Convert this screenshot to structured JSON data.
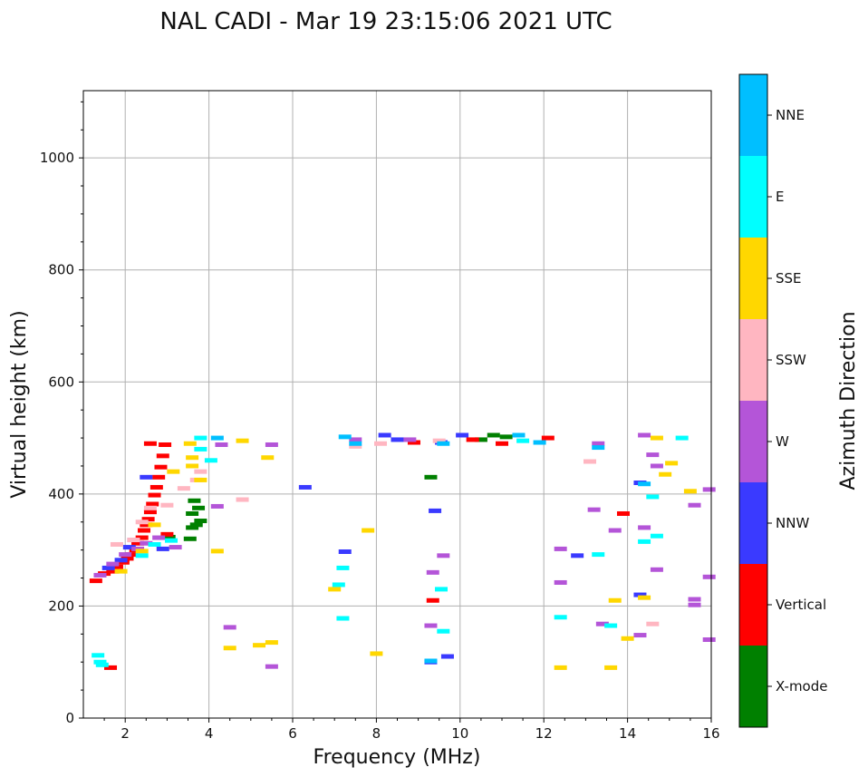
{
  "chart_data": {
    "type": "scatter",
    "title": "NAL CADI - Mar 19 23:15:06 2021 UTC",
    "xlabel": "Frequency (MHz)",
    "ylabel": "Virtual height (km)",
    "xlim": [
      1,
      16
    ],
    "ylim": [
      0,
      1120
    ],
    "xticks": [
      2,
      4,
      6,
      8,
      10,
      12,
      14,
      16
    ],
    "yticks": [
      0,
      200,
      400,
      600,
      800,
      1000
    ],
    "grid": true,
    "colorbar": {
      "title": "Azimuth Direction",
      "categories": [
        {
          "name": "X-mode",
          "color": "#008000"
        },
        {
          "name": "Vertical",
          "color": "#ff0000"
        },
        {
          "name": "NNW",
          "color": "#3a3aff"
        },
        {
          "name": "W",
          "color": "#b455d8"
        },
        {
          "name": "SSW",
          "color": "#ffb6c1"
        },
        {
          "name": "SSE",
          "color": "#ffd700"
        },
        {
          "name": "E",
          "color": "#00ffff"
        },
        {
          "name": "NNE",
          "color": "#00bfff"
        }
      ]
    },
    "series": [
      {
        "category": "X-mode",
        "points": [
          [
            3.05,
            323
          ],
          [
            3.55,
            320
          ],
          [
            3.6,
            340
          ],
          [
            3.7,
            345
          ],
          [
            3.8,
            352
          ],
          [
            3.6,
            365
          ],
          [
            3.75,
            375
          ],
          [
            3.65,
            388
          ],
          [
            10.5,
            497
          ],
          [
            10.8,
            505
          ],
          [
            11.1,
            502
          ],
          [
            9.3,
            430
          ]
        ]
      },
      {
        "category": "Vertical",
        "points": [
          [
            1.3,
            245
          ],
          [
            1.5,
            258
          ],
          [
            1.7,
            262
          ],
          [
            1.8,
            270
          ],
          [
            1.95,
            278
          ],
          [
            2.05,
            285
          ],
          [
            2.15,
            292
          ],
          [
            2.25,
            300
          ],
          [
            2.3,
            312
          ],
          [
            2.4,
            322
          ],
          [
            2.45,
            335
          ],
          [
            2.5,
            345
          ],
          [
            2.55,
            355
          ],
          [
            2.6,
            368
          ],
          [
            2.65,
            382
          ],
          [
            2.7,
            398
          ],
          [
            2.75,
            412
          ],
          [
            2.8,
            430
          ],
          [
            2.85,
            448
          ],
          [
            2.9,
            468
          ],
          [
            2.95,
            488
          ],
          [
            2.6,
            490
          ],
          [
            3.0,
            328
          ],
          [
            1.65,
            90
          ],
          [
            8.9,
            492
          ],
          [
            10.3,
            497
          ],
          [
            11.0,
            490
          ],
          [
            12.1,
            500
          ],
          [
            13.9,
            365
          ],
          [
            9.35,
            210
          ]
        ]
      },
      {
        "category": "NNW",
        "points": [
          [
            1.6,
            268
          ],
          [
            1.9,
            282
          ],
          [
            2.1,
            305
          ],
          [
            2.2,
            318
          ],
          [
            2.9,
            302
          ],
          [
            2.5,
            430
          ],
          [
            6.3,
            412
          ],
          [
            7.25,
            297
          ],
          [
            8.2,
            505
          ],
          [
            8.5,
            497
          ],
          [
            9.55,
            492
          ],
          [
            10.05,
            505
          ],
          [
            12.8,
            290
          ],
          [
            14.3,
            420
          ],
          [
            14.3,
            220
          ],
          [
            9.4,
            370
          ],
          [
            9.3,
            100
          ],
          [
            9.7,
            110
          ]
        ]
      },
      {
        "category": "W",
        "points": [
          [
            1.4,
            255
          ],
          [
            1.7,
            275
          ],
          [
            2.0,
            292
          ],
          [
            2.3,
            302
          ],
          [
            2.5,
            312
          ],
          [
            2.8,
            322
          ],
          [
            3.2,
            305
          ],
          [
            4.2,
            378
          ],
          [
            4.3,
            488
          ],
          [
            4.5,
            162
          ],
          [
            5.5,
            488
          ],
          [
            5.5,
            92
          ],
          [
            7.5,
            497
          ],
          [
            8.8,
            497
          ],
          [
            12.4,
            302
          ],
          [
            13.3,
            490
          ],
          [
            13.2,
            372
          ],
          [
            13.4,
            168
          ],
          [
            12.4,
            242
          ],
          [
            14.4,
            505
          ],
          [
            14.4,
            340
          ],
          [
            14.6,
            470
          ],
          [
            14.7,
            450
          ],
          [
            14.7,
            265
          ],
          [
            15.6,
            380
          ],
          [
            15.6,
            212
          ],
          [
            15.6,
            202
          ],
          [
            15.95,
            408
          ],
          [
            15.95,
            252
          ],
          [
            15.95,
            140
          ],
          [
            13.7,
            335
          ],
          [
            14.3,
            148
          ],
          [
            9.3,
            165
          ],
          [
            9.6,
            290
          ],
          [
            9.35,
            260
          ]
        ]
      },
      {
        "category": "SSW",
        "points": [
          [
            1.8,
            310
          ],
          [
            2.2,
            318
          ],
          [
            2.4,
            350
          ],
          [
            2.6,
            375
          ],
          [
            3.0,
            380
          ],
          [
            3.4,
            410
          ],
          [
            3.7,
            425
          ],
          [
            3.8,
            440
          ],
          [
            7.5,
            485
          ],
          [
            8.1,
            490
          ],
          [
            13.1,
            458
          ],
          [
            14.6,
            168
          ],
          [
            4.8,
            390
          ],
          [
            9.5,
            495
          ]
        ]
      },
      {
        "category": "SSE",
        "points": [
          [
            1.9,
            262
          ],
          [
            2.4,
            298
          ],
          [
            2.7,
            345
          ],
          [
            3.15,
            440
          ],
          [
            3.55,
            490
          ],
          [
            3.6,
            465
          ],
          [
            3.6,
            450
          ],
          [
            3.8,
            425
          ],
          [
            4.2,
            298
          ],
          [
            4.8,
            495
          ],
          [
            5.4,
            465
          ],
          [
            5.5,
            135
          ],
          [
            5.2,
            130
          ],
          [
            12.4,
            90
          ],
          [
            13.7,
            210
          ],
          [
            14.0,
            142
          ],
          [
            14.4,
            215
          ],
          [
            14.7,
            500
          ],
          [
            14.9,
            435
          ],
          [
            15.05,
            455
          ],
          [
            15.5,
            405
          ],
          [
            7.8,
            335
          ],
          [
            7.0,
            230
          ],
          [
            4.5,
            125
          ],
          [
            8.0,
            115
          ],
          [
            13.6,
            90
          ]
        ]
      },
      {
        "category": "E",
        "points": [
          [
            1.35,
            112
          ],
          [
            1.4,
            100
          ],
          [
            1.45,
            95
          ],
          [
            2.4,
            290
          ],
          [
            2.7,
            310
          ],
          [
            3.1,
            317
          ],
          [
            3.8,
            480
          ],
          [
            3.8,
            500
          ],
          [
            4.05,
            460
          ],
          [
            7.2,
            268
          ],
          [
            7.2,
            178
          ],
          [
            7.1,
            238
          ],
          [
            11.5,
            495
          ],
          [
            12.4,
            180
          ],
          [
            13.3,
            292
          ],
          [
            14.4,
            315
          ],
          [
            14.6,
            395
          ],
          [
            15.3,
            500
          ],
          [
            14.7,
            325
          ],
          [
            13.6,
            165
          ],
          [
            9.6,
            155
          ],
          [
            9.55,
            230
          ]
        ]
      },
      {
        "category": "NNE",
        "points": [
          [
            4.2,
            500
          ],
          [
            7.25,
            502
          ],
          [
            7.5,
            490
          ],
          [
            9.6,
            490
          ],
          [
            11.4,
            505
          ],
          [
            11.9,
            492
          ],
          [
            13.3,
            483
          ],
          [
            14.4,
            418
          ],
          [
            9.3,
            102
          ]
        ]
      }
    ]
  }
}
